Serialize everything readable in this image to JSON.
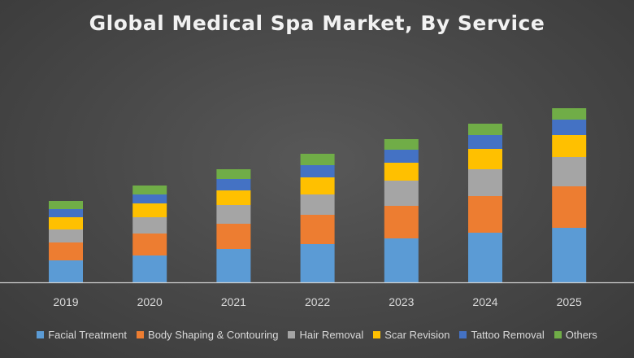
{
  "chart_data": {
    "type": "bar",
    "stacked": true,
    "title": "Global Medical Spa Market, By Service",
    "xlabel": "",
    "ylabel": "",
    "categories": [
      "2019",
      "2020",
      "2021",
      "2022",
      "2023",
      "2024",
      "2025"
    ],
    "ylim": [
      0,
      247
    ],
    "y_axis_labels_shown": false,
    "grid": false,
    "legend_position": "bottom",
    "series": [
      {
        "name": "Facial Treatment",
        "color": "#5b9bd5",
        "values": [
          27,
          33,
          41,
          47,
          54,
          61,
          67
        ]
      },
      {
        "name": "Body Shaping & Contouring",
        "color": "#ed7d31",
        "values": [
          22,
          27,
          31,
          36,
          40,
          45,
          51
        ]
      },
      {
        "name": "Hair Removal",
        "color": "#a5a5a5",
        "values": [
          16,
          20,
          23,
          25,
          31,
          33,
          36
        ]
      },
      {
        "name": "Scar Revision",
        "color": "#ffc000",
        "values": [
          15,
          17,
          18,
          21,
          22,
          25,
          27
        ]
      },
      {
        "name": "Tattoo Removal",
        "color": "#4472c4",
        "values": [
          10,
          11,
          14,
          15,
          16,
          17,
          19
        ]
      },
      {
        "name": "Others",
        "color": "#70ad47",
        "values": [
          10,
          11,
          12,
          14,
          13,
          14,
          14
        ]
      }
    ]
  }
}
